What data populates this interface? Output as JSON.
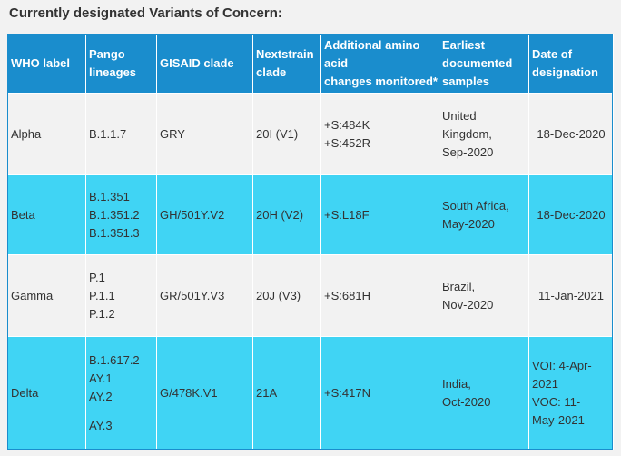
{
  "heading": "Currently designated Variants of Concern:",
  "headers": [
    [
      "WHO label"
    ],
    [
      "Pango",
      "lineages"
    ],
    [
      "GISAID clade"
    ],
    [
      "Nextstrain",
      "clade"
    ],
    [
      "Additional amino",
      "acid",
      "changes monitored*"
    ],
    [
      "Earliest",
      "documented",
      "samples"
    ],
    [
      "Date of",
      "designation"
    ]
  ],
  "rows": [
    {
      "who": "Alpha",
      "pango": [
        "B.1.1.7"
      ],
      "gisaid": "GRY",
      "nextstrain": "20I (V1)",
      "amino": [
        "+S:484K",
        "+S:452R"
      ],
      "earliest": [
        "United",
        "Kingdom,",
        "Sep-2020"
      ],
      "date": [
        "18-Dec-2020"
      ]
    },
    {
      "who": "Beta",
      "pango": [
        "B.1.351",
        "B.1.351.2",
        "B.1.351.3"
      ],
      "gisaid": "GH/501Y.V2",
      "nextstrain": "20H (V2)",
      "amino": [
        "+S:L18F"
      ],
      "earliest": [
        "South Africa,",
        "May-2020"
      ],
      "date": [
        "18-Dec-2020"
      ]
    },
    {
      "who": "Gamma",
      "pango": [
        "P.1",
        "P.1.1",
        "P.1.2"
      ],
      "gisaid": "GR/501Y.V3",
      "nextstrain": "20J (V3)",
      "amino": [
        "+S:681H"
      ],
      "earliest": [
        "Brazil,",
        "Nov-2020"
      ],
      "date": [
        "11-Jan-2021"
      ]
    },
    {
      "who": "Delta",
      "pango": [
        "B.1.617.2",
        "AY.1",
        "AY.2",
        "AY.3"
      ],
      "gisaid": "G/478K.V1",
      "nextstrain": "21A",
      "amino": [
        "+S:417N"
      ],
      "earliest": [
        "India,",
        "Oct-2020"
      ],
      "date": [
        "VOI: 4-Apr-",
        "2021",
        "VOC: 11-",
        "May-2021"
      ]
    }
  ]
}
